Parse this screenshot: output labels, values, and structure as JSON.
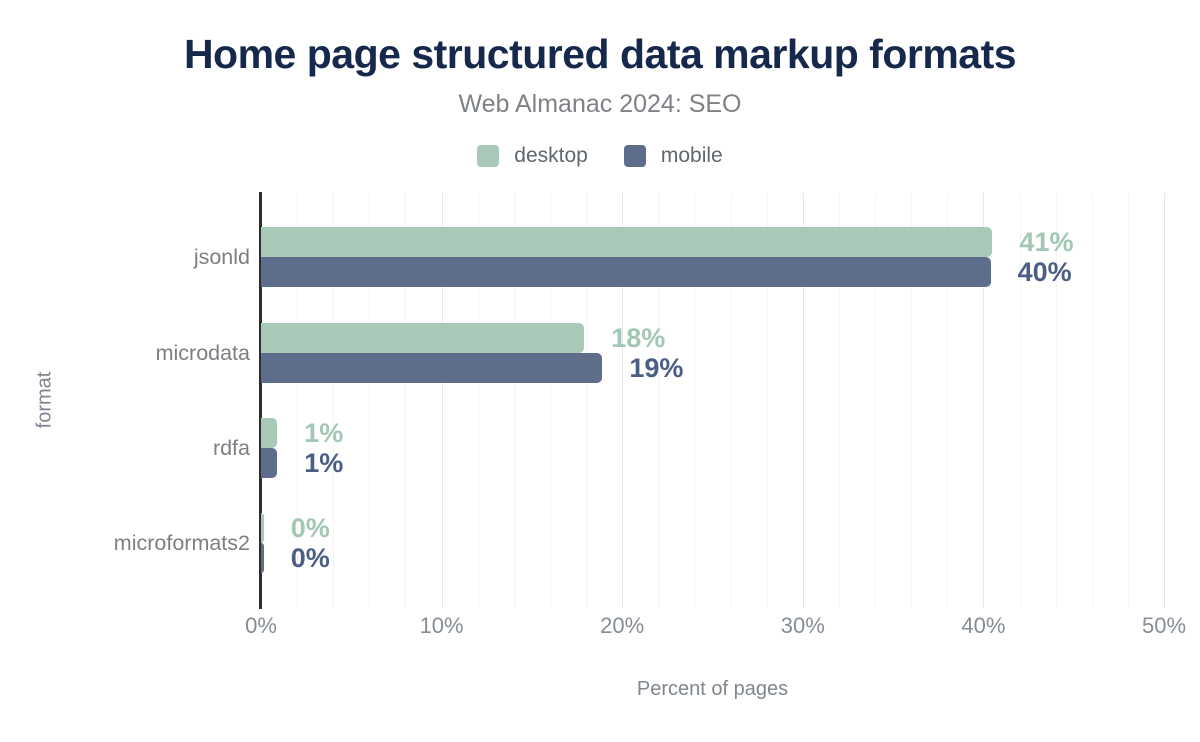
{
  "chart_data": {
    "type": "bar",
    "orientation": "horizontal",
    "title": "Home page structured data markup formats",
    "subtitle": "Web Almanac 2024: SEO",
    "xlabel": "Percent of pages",
    "ylabel": "format",
    "categories": [
      "jsonld",
      "microdata",
      "rdfa",
      "microformats2"
    ],
    "series": [
      {
        "name": "desktop",
        "color": "#a9c9b8",
        "label_color": "#a3c7b5",
        "values": [
          40.5,
          17.9,
          0.9,
          0.15
        ],
        "labels": [
          "41%",
          "18%",
          "1%",
          "0%"
        ]
      },
      {
        "name": "mobile",
        "color": "#5e6d8b",
        "label_color": "#4b5f85",
        "values": [
          40.4,
          18.9,
          0.9,
          0.15
        ],
        "labels": [
          "40%",
          "19%",
          "1%",
          "0%"
        ]
      }
    ],
    "xlim": [
      0,
      50
    ],
    "x_ticks": [
      {
        "value": 0,
        "label": "0%"
      },
      {
        "value": 10,
        "label": "10%"
      },
      {
        "value": 20,
        "label": "20%"
      },
      {
        "value": 30,
        "label": "30%"
      },
      {
        "value": 40,
        "label": "40%"
      },
      {
        "value": 50,
        "label": "50%"
      }
    ],
    "grid": {
      "minor_step": 2,
      "major_step": 10
    },
    "legend_position": "top",
    "colors": {
      "title": "#16294d",
      "subtitle": "#7e8287",
      "axis_line": "#2d2d2d",
      "tick_label": "#878d94",
      "category_label": "#7c8084",
      "axis_title": "#80868f",
      "gridline_minor": "#f4f4f4",
      "gridline_major": "#e7e7e7"
    }
  }
}
